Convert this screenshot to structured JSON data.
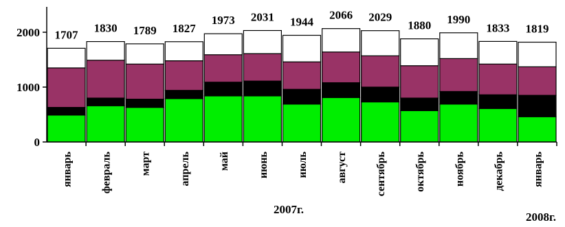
{
  "chart_data": {
    "type": "bar",
    "stacked": true,
    "categories": [
      "январь",
      "февраль",
      "март",
      "апрель",
      "май",
      "июнь",
      "июль",
      "август",
      "сентябрь",
      "октябрь",
      "ноябрь",
      "декабрь",
      "январь"
    ],
    "totals": [
      1707,
      1830,
      1789,
      1827,
      1973,
      2031,
      1944,
      2066,
      2029,
      1880,
      1990,
      1833,
      1819
    ],
    "series": [
      {
        "color": "#00ee00",
        "values": [
          490,
          660,
          630,
          790,
          840,
          840,
          690,
          810,
          730,
          570,
          690,
          610,
          460
        ]
      },
      {
        "color": "#000000",
        "values": [
          140,
          140,
          150,
          150,
          250,
          270,
          270,
          270,
          270,
          230,
          230,
          250,
          390
        ]
      },
      {
        "color": "#993366",
        "values": [
          720,
          690,
          640,
          540,
          500,
          500,
          500,
          560,
          570,
          590,
          600,
          560,
          520
        ]
      },
      {
        "color": "#ffffff",
        "values": [
          357,
          340,
          369,
          347,
          383,
          421,
          484,
          426,
          459,
          490,
          470,
          413,
          449
        ]
      }
    ],
    "ylim": [
      0,
      2000
    ],
    "yticks": [
      0,
      1000,
      2000
    ],
    "year_labels": [
      "2007г.",
      "2008г."
    ],
    "grid": false
  }
}
